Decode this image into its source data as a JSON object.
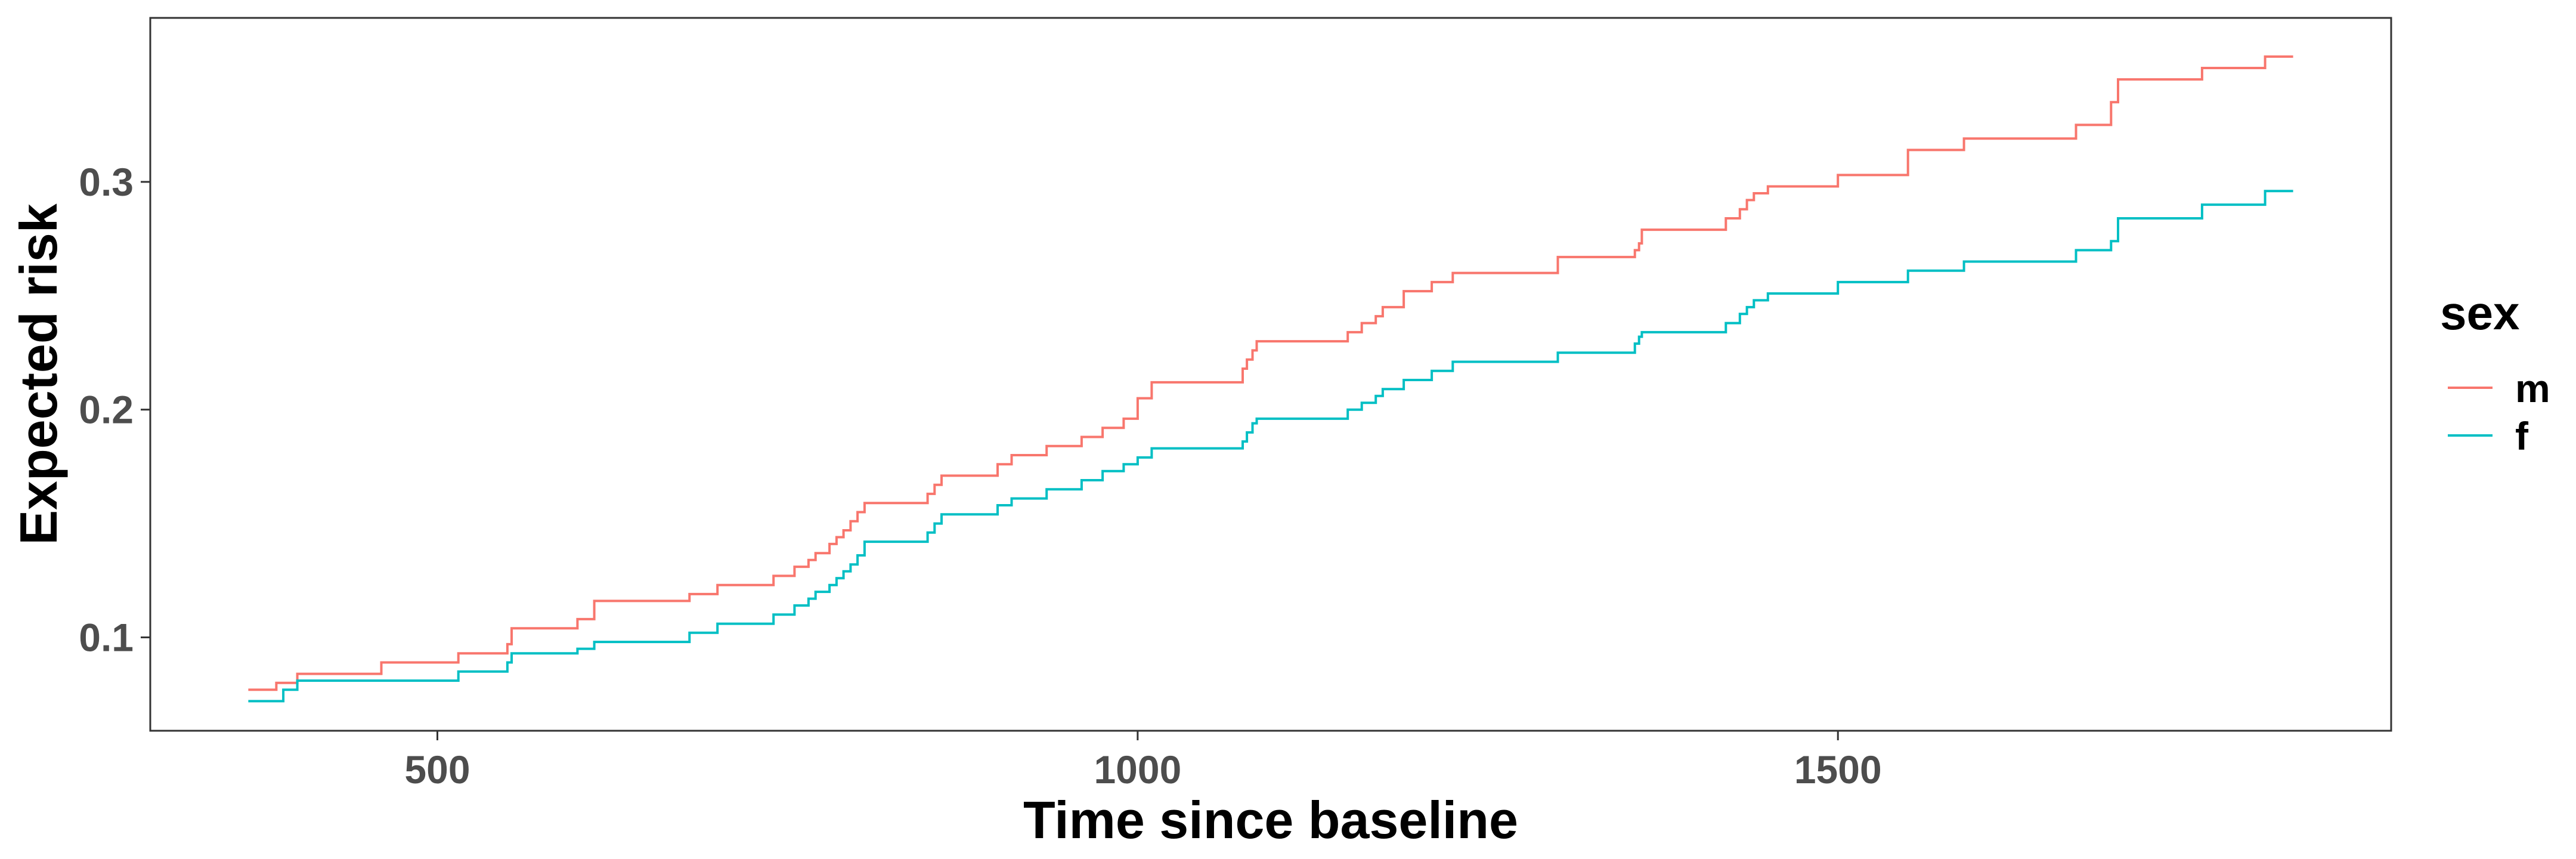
{
  "chart_data": {
    "type": "line",
    "step": true,
    "title": "",
    "xlabel": "Time since baseline",
    "ylabel": "Expected risk",
    "xlim": [
      295,
      1895
    ],
    "ylim": [
      0.059,
      0.372
    ],
    "x_ticks": [
      {
        "value": 500,
        "label": "500"
      },
      {
        "value": 1000,
        "label": "1000"
      },
      {
        "value": 1500,
        "label": "1500"
      }
    ],
    "y_ticks": [
      {
        "value": 0.1,
        "label": "0.1"
      },
      {
        "value": 0.2,
        "label": "0.2"
      },
      {
        "value": 0.3,
        "label": "0.3"
      }
    ],
    "grid": false,
    "legend": {
      "title": "sex",
      "position": "right"
    },
    "series": [
      {
        "name": "m",
        "color": "#F8766D",
        "x": [
          365,
          385,
          400,
          460,
          515,
          550,
          553,
          600,
          612,
          680,
          700,
          740,
          755,
          765,
          770,
          780,
          785,
          790,
          795,
          800,
          805,
          850,
          855,
          860,
          900,
          910,
          935,
          960,
          975,
          990,
          1000,
          1010,
          1075,
          1078,
          1082,
          1085,
          1150,
          1160,
          1170,
          1175,
          1190,
          1210,
          1225,
          1300,
          1355,
          1358,
          1360,
          1420,
          1430,
          1435,
          1440,
          1450,
          1500,
          1550,
          1590,
          1670,
          1695,
          1700,
          1760,
          1805,
          1825
        ],
        "y": [
          0.077,
          0.08,
          0.084,
          0.089,
          0.093,
          0.097,
          0.104,
          0.108,
          0.116,
          0.119,
          0.123,
          0.127,
          0.131,
          0.134,
          0.137,
          0.141,
          0.144,
          0.147,
          0.151,
          0.155,
          0.159,
          0.163,
          0.167,
          0.171,
          0.176,
          0.18,
          0.184,
          0.188,
          0.192,
          0.196,
          0.205,
          0.212,
          0.218,
          0.222,
          0.226,
          0.23,
          0.234,
          0.238,
          0.241,
          0.245,
          0.252,
          0.256,
          0.26,
          0.267,
          0.27,
          0.273,
          0.279,
          0.284,
          0.288,
          0.292,
          0.295,
          0.298,
          0.303,
          0.314,
          0.319,
          0.325,
          0.335,
          0.345,
          0.35,
          0.355,
          0.355
        ]
      },
      {
        "name": "f",
        "color": "#00BFC4",
        "x": [
          365,
          390,
          400,
          515,
          550,
          553,
          600,
          612,
          680,
          700,
          740,
          755,
          765,
          770,
          780,
          785,
          790,
          795,
          800,
          805,
          850,
          855,
          860,
          900,
          910,
          935,
          960,
          975,
          990,
          1000,
          1010,
          1075,
          1078,
          1082,
          1085,
          1150,
          1160,
          1170,
          1175,
          1190,
          1210,
          1225,
          1300,
          1355,
          1358,
          1360,
          1420,
          1430,
          1435,
          1440,
          1450,
          1500,
          1550,
          1590,
          1670,
          1695,
          1700,
          1760,
          1805,
          1825
        ],
        "y": [
          0.072,
          0.077,
          0.081,
          0.085,
          0.089,
          0.093,
          0.095,
          0.098,
          0.102,
          0.106,
          0.11,
          0.114,
          0.117,
          0.12,
          0.123,
          0.126,
          0.129,
          0.132,
          0.136,
          0.142,
          0.146,
          0.15,
          0.154,
          0.158,
          0.161,
          0.165,
          0.169,
          0.173,
          0.176,
          0.179,
          0.183,
          0.186,
          0.19,
          0.194,
          0.196,
          0.2,
          0.203,
          0.206,
          0.209,
          0.213,
          0.217,
          0.221,
          0.225,
          0.229,
          0.232,
          0.234,
          0.238,
          0.242,
          0.245,
          0.248,
          0.251,
          0.256,
          0.261,
          0.265,
          0.27,
          0.274,
          0.284,
          0.29,
          0.296,
          0.296
        ]
      }
    ]
  }
}
